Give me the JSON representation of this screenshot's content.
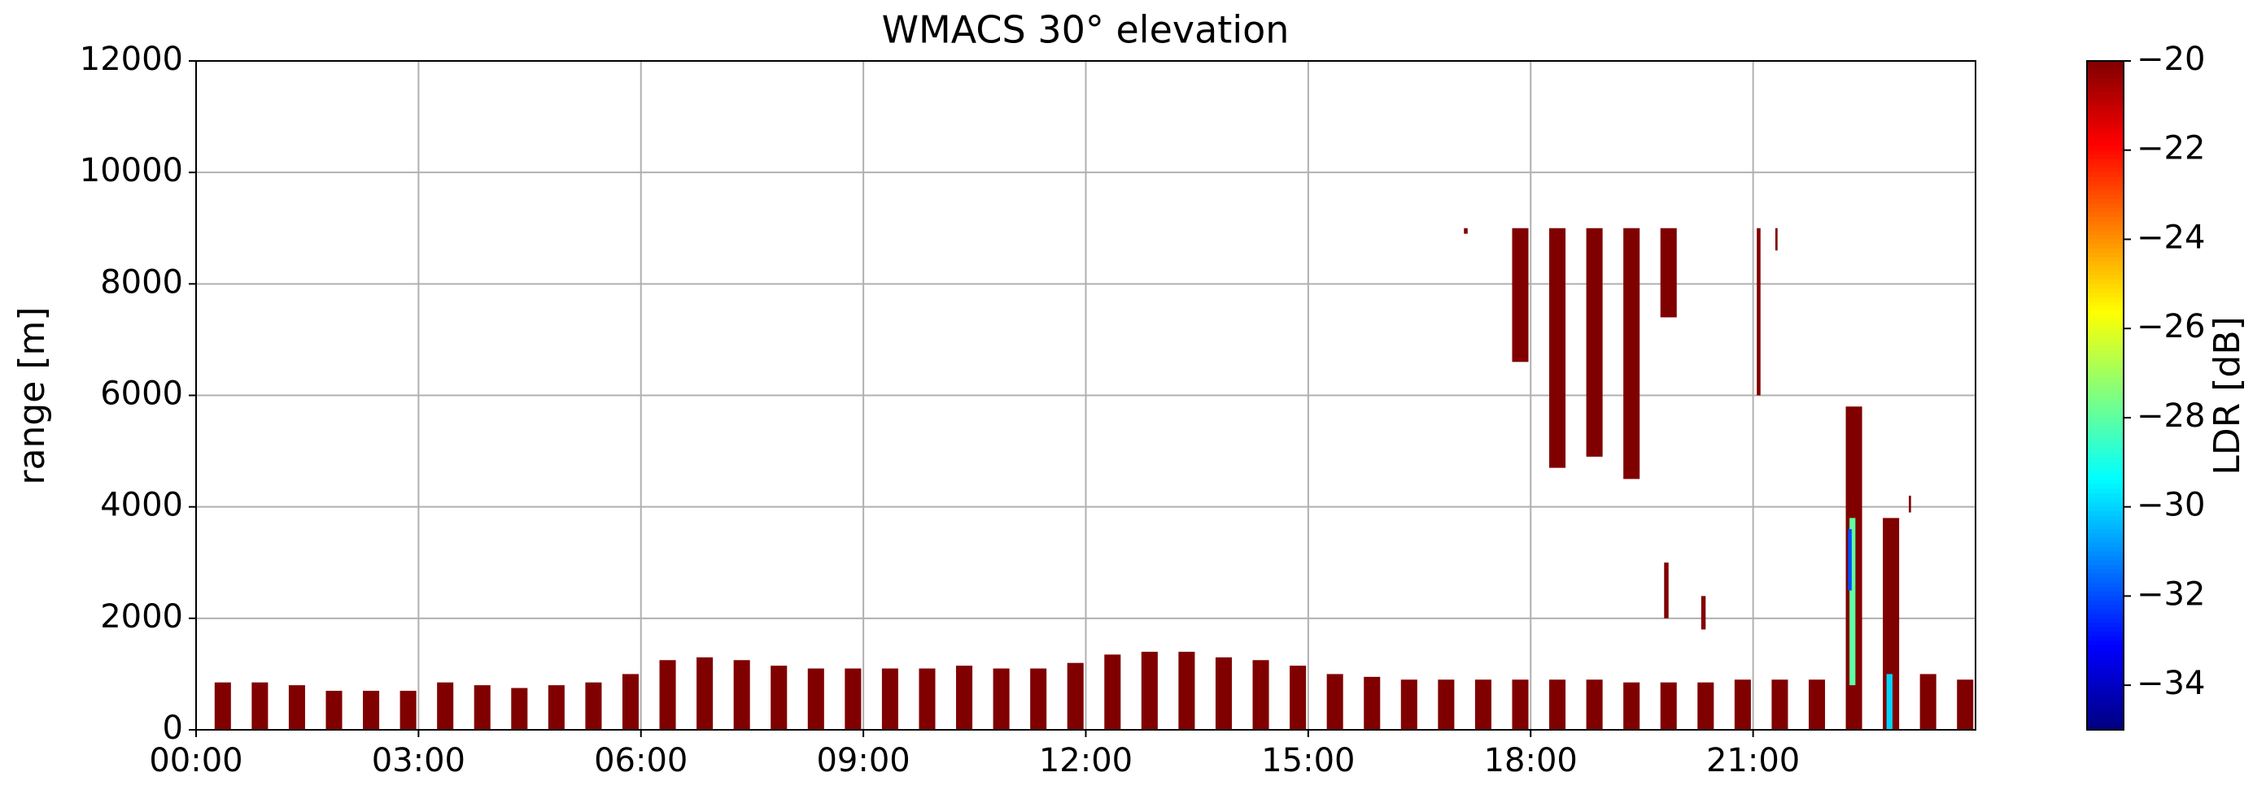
{
  "chart_data": {
    "type": "heatmap",
    "title": "WMACS 30° elevation",
    "y_label": "range [m]",
    "colorbar_label": "LDR [dB]",
    "xlim": [
      0,
      24
    ],
    "xticks": [
      {
        "value": 0,
        "label": "00:00"
      },
      {
        "value": 3,
        "label": "03:00"
      },
      {
        "value": 6,
        "label": "06:00"
      },
      {
        "value": 9,
        "label": "09:00"
      },
      {
        "value": 12,
        "label": "12:00"
      },
      {
        "value": 15,
        "label": "15:00"
      },
      {
        "value": 18,
        "label": "18:00"
      },
      {
        "value": 21,
        "label": "21:00"
      }
    ],
    "ylim": [
      0,
      12000
    ],
    "yticks": [
      0,
      2000,
      4000,
      6000,
      8000,
      10000,
      12000
    ],
    "grid": true,
    "colormap": "jet",
    "clim": [
      -35,
      -20
    ],
    "cticks": [
      {
        "value": -20,
        "label": "−20"
      },
      {
        "value": -22,
        "label": "−22"
      },
      {
        "value": -24,
        "label": "−24"
      },
      {
        "value": -26,
        "label": "−26"
      },
      {
        "value": -28,
        "label": "−28"
      },
      {
        "value": -30,
        "label": "−30"
      },
      {
        "value": -32,
        "label": "−32"
      },
      {
        "value": -34,
        "label": "−34"
      }
    ],
    "time_start": [
      0.25,
      0.75,
      1.25,
      1.75,
      2.25,
      2.75,
      3.25,
      3.75,
      4.25,
      4.75,
      5.25,
      5.75,
      6.25,
      6.75,
      7.25,
      7.75,
      8.25,
      8.75,
      9.25,
      9.75,
      10.25,
      10.75,
      11.25,
      11.75,
      12.25,
      12.75,
      13.25,
      13.75,
      14.25,
      14.75,
      15.25,
      15.75,
      16.25,
      16.75,
      17.25,
      17.75,
      18.25,
      18.75,
      19.25,
      19.75,
      20.25,
      20.75,
      21.25,
      21.75,
      22.25,
      22.75,
      23.25,
      23.75,
      17.75,
      18.25,
      18.75,
      19.25,
      19.75,
      19.8,
      20.3,
      21.05,
      21.3,
      23.1,
      17.1,
      22.3,
      22.8,
      22.28
    ],
    "time_end": [
      0.47,
      0.97,
      1.47,
      1.97,
      2.47,
      2.97,
      3.47,
      3.97,
      4.47,
      4.97,
      5.47,
      5.97,
      6.47,
      6.97,
      7.47,
      7.97,
      8.47,
      8.97,
      9.47,
      9.97,
      10.47,
      10.97,
      11.47,
      11.97,
      12.47,
      12.97,
      13.47,
      13.97,
      14.47,
      14.97,
      15.47,
      15.97,
      16.47,
      16.97,
      17.47,
      17.97,
      18.47,
      18.97,
      19.47,
      19.97,
      20.47,
      20.97,
      21.47,
      21.97,
      22.47,
      22.97,
      23.47,
      23.97,
      17.97,
      18.47,
      18.97,
      19.47,
      19.97,
      19.86,
      20.36,
      21.1,
      21.33,
      23.13,
      17.15,
      22.38,
      22.88,
      22.33
    ],
    "range_bottom": [
      0,
      0,
      0,
      0,
      0,
      0,
      0,
      0,
      0,
      0,
      0,
      0,
      0,
      0,
      0,
      0,
      0,
      0,
      0,
      0,
      0,
      0,
      0,
      0,
      0,
      0,
      0,
      0,
      0,
      0,
      0,
      0,
      0,
      0,
      0,
      0,
      0,
      0,
      0,
      0,
      0,
      0,
      0,
      0,
      0,
      0,
      0,
      0,
      6600,
      4700,
      4900,
      4500,
      7400,
      2000,
      1800,
      6000,
      8600,
      3900,
      8900,
      800,
      0,
      2500
    ],
    "range_top": [
      850,
      850,
      800,
      700,
      700,
      700,
      850,
      800,
      750,
      800,
      850,
      1000,
      1250,
      1300,
      1250,
      1150,
      1100,
      1100,
      1100,
      1100,
      1150,
      1100,
      1100,
      1200,
      1350,
      1400,
      1400,
      1300,
      1250,
      1150,
      1000,
      950,
      900,
      900,
      900,
      900,
      900,
      900,
      850,
      850,
      850,
      900,
      900,
      900,
      5800,
      3800,
      1000,
      900,
      9000,
      9000,
      9000,
      9000,
      9000,
      3000,
      2400,
      9000,
      9000,
      4200,
      9000,
      3800,
      1000,
      3600
    ],
    "ldr": [
      -20,
      -20,
      -20,
      -20,
      -20,
      -20,
      -20,
      -20,
      -20,
      -20,
      -20,
      -20,
      -20,
      -20,
      -20,
      -20,
      -20,
      -20,
      -20,
      -20,
      -20,
      -20,
      -20,
      -20,
      -20,
      -20,
      -20,
      -20,
      -20,
      -20,
      -20,
      -20,
      -20,
      -20,
      -20,
      -20,
      -20,
      -20,
      -20,
      -20,
      -20,
      -20,
      -20,
      -20,
      -20,
      -20,
      -20,
      -20,
      -20,
      -20,
      -20,
      -20,
      -20,
      -20,
      -20,
      -20,
      -20,
      -20,
      -20,
      -28,
      -30,
      -32
    ]
  }
}
